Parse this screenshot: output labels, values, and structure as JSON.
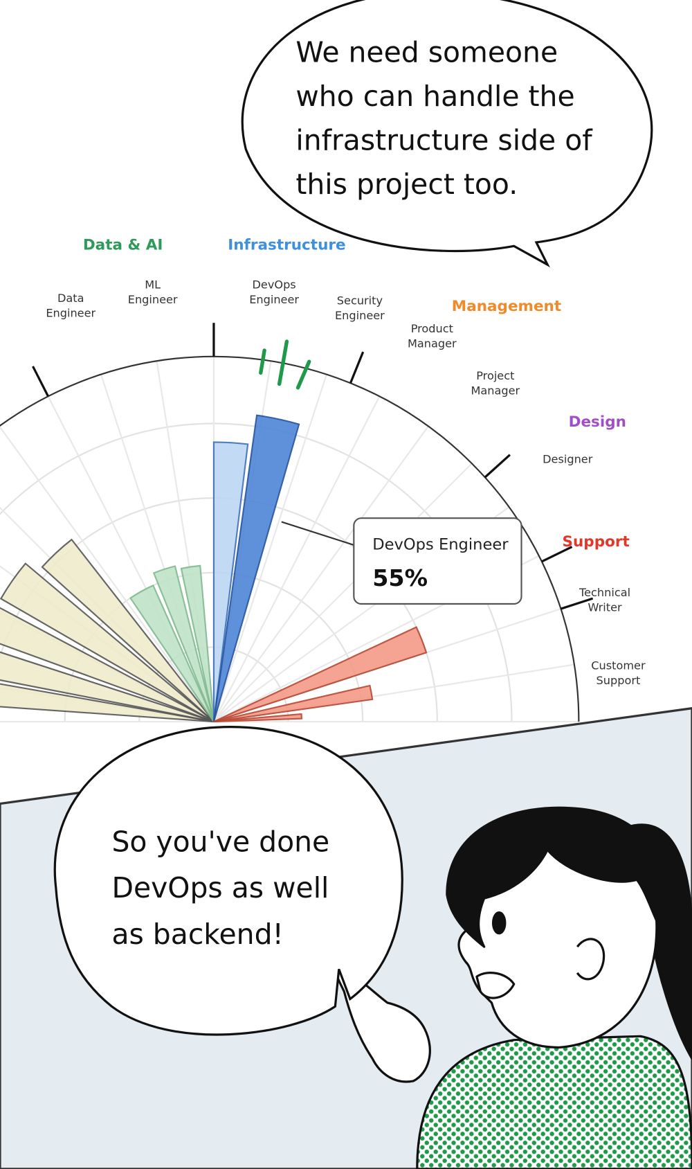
{
  "top_bubble": {
    "lines": [
      "We need someone",
      "who can handle the",
      "infrastructure side of",
      "this project too."
    ]
  },
  "chart": {
    "groups": [
      "Data & AI",
      "Infrastructure",
      "Management",
      "Design",
      "Support"
    ],
    "roles": [
      {
        "lines": [
          "Data",
          "Engineer"
        ]
      },
      {
        "lines": [
          "ML",
          "Engineer"
        ]
      },
      {
        "lines": [
          "DevOps",
          "Engineer"
        ]
      },
      {
        "lines": [
          "Security",
          "Engineer"
        ]
      },
      {
        "lines": [
          "Product",
          "Manager"
        ]
      },
      {
        "lines": [
          "Project",
          "Manager"
        ]
      },
      {
        "lines": [
          "Designer"
        ]
      },
      {
        "lines": [
          "Technical",
          "Writer"
        ]
      },
      {
        "lines": [
          "Customer",
          "Support"
        ]
      }
    ],
    "tooltip": {
      "label": "DevOps Engineer",
      "value": "55%"
    }
  },
  "bottom_bubble": {
    "lines": [
      "So you've done",
      "DevOps as well",
      "as backend!"
    ]
  }
}
